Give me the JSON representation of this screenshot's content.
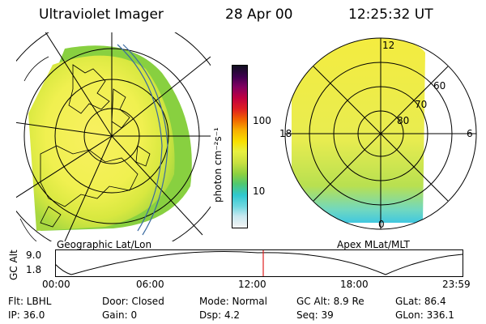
{
  "header": {
    "title": "Ultraviolet Imager",
    "date": "28 Apr 00",
    "time": "12:25:32 UT"
  },
  "left_panel": {
    "label": "Geographic Lat/Lon"
  },
  "right_panel": {
    "label": "Apex MLat/MLT",
    "mlt_labels": [
      "12",
      "18",
      "6",
      "0"
    ],
    "lat_labels": [
      "60",
      "70",
      "80"
    ]
  },
  "colorbar": {
    "units": "photon cm⁻²s⁻¹",
    "tick_labels": [
      "100",
      "10"
    ],
    "colors": [
      "#f4f4f4",
      "#c8e8f0",
      "#70d8e0",
      "#30c8d0",
      "#50c870",
      "#8cd040",
      "#c8e040",
      "#e8f040",
      "#f8e000",
      "#f8b000",
      "#f06000",
      "#e02020",
      "#c00040",
      "#800060",
      "#400050",
      "#101020"
    ]
  },
  "timeline": {
    "ylabel": "GC Alt",
    "y_ticks": [
      "9.0",
      "1.8"
    ],
    "x_ticks": [
      "00:00",
      "06:00",
      "12:00",
      "18:00",
      "23:59"
    ],
    "marker_color": "#e02020"
  },
  "info": {
    "flt": "Flt: LBHL",
    "ip": "IP: 36.0",
    "door": "Door: Closed",
    "gain": "Gain:  0",
    "mode": "Mode: Normal",
    "dsp": "Dsp:     4.2",
    "gcalt": "GC Alt: 8.9 Re",
    "seq": "Seq: 39",
    "glat": "GLat:  86.4",
    "glon": "GLon: 336.1"
  }
}
